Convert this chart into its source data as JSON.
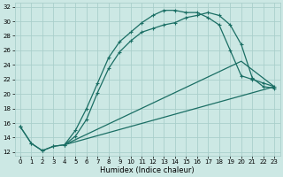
{
  "xlabel": "Humidex (Indice chaleur)",
  "bg_color": "#cce8e4",
  "grid_color": "#aacfcb",
  "line_color": "#1a6e64",
  "xlim": [
    -0.5,
    23.5
  ],
  "ylim": [
    11.5,
    32.5
  ],
  "xticks": [
    0,
    1,
    2,
    3,
    4,
    5,
    6,
    7,
    8,
    9,
    10,
    11,
    12,
    13,
    14,
    15,
    16,
    17,
    18,
    19,
    20,
    21,
    22,
    23
  ],
  "yticks": [
    12,
    14,
    16,
    18,
    20,
    22,
    24,
    26,
    28,
    30,
    32
  ],
  "line1_x": [
    0,
    1,
    2,
    3,
    4,
    5,
    6,
    7,
    8,
    9,
    10,
    11,
    12,
    13,
    14,
    15,
    16,
    17,
    18,
    19,
    20,
    21,
    22,
    23
  ],
  "line1_y": [
    15.5,
    13.2,
    12.2,
    12.8,
    13.0,
    14.2,
    16.5,
    20.2,
    23.5,
    25.8,
    27.3,
    28.5,
    29.0,
    29.5,
    29.8,
    30.5,
    30.8,
    31.2,
    30.8,
    29.5,
    26.8,
    22.2,
    21.0,
    20.8
  ],
  "line2_x": [
    0,
    1,
    2,
    3,
    4,
    5,
    6,
    7,
    8,
    9,
    10,
    11,
    12,
    13,
    14,
    15,
    16,
    17,
    18,
    19,
    20,
    21,
    22,
    23
  ],
  "line2_y": [
    15.5,
    13.2,
    12.2,
    12.8,
    13.0,
    15.0,
    18.0,
    21.5,
    25.0,
    27.2,
    28.5,
    29.8,
    30.8,
    31.5,
    31.5,
    31.2,
    31.2,
    30.5,
    29.5,
    26.0,
    22.5,
    22.0,
    21.5,
    21.0
  ],
  "line3_x": [
    4,
    23
  ],
  "line3_y": [
    13.0,
    21.0
  ],
  "line4_x": [
    4,
    20,
    23
  ],
  "line4_y": [
    13.0,
    24.5,
    21.0
  ],
  "marker": "+",
  "markersize": 3,
  "linewidth": 0.9,
  "axis_fontsize": 6,
  "tick_fontsize": 5
}
